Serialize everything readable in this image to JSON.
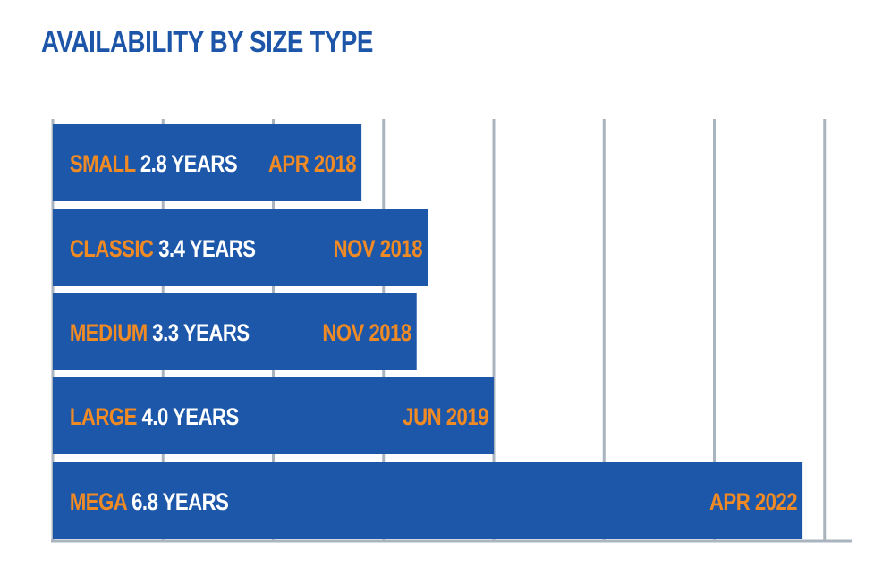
{
  "title": "AVAILABILITY BY SIZE TYPE",
  "colors": {
    "title": "#1d55a8",
    "bar": "#1d57aa",
    "accent": "#f08a24",
    "text_on_bar": "#ffffff",
    "grid": "#a9b4bf"
  },
  "chart_data": {
    "type": "bar",
    "orientation": "horizontal",
    "title": "AVAILABILITY BY SIZE TYPE",
    "xlabel": "",
    "ylabel": "",
    "xlim": [
      0,
      7
    ],
    "grid": true,
    "categories": [
      "SMALL",
      "CLASSIC",
      "MEDIUM",
      "LARGE",
      "MEGA"
    ],
    "values": [
      2.8,
      3.4,
      3.3,
      4.0,
      6.8
    ],
    "value_labels": [
      "2.8 YEARS",
      "3.4 YEARS",
      "3.3 YEARS",
      "4.0 YEARS",
      "6.8 YEARS"
    ],
    "date_labels": [
      "APR 2018",
      "NOV 2018",
      "NOV 2018",
      "JUN 2019",
      "APR 2022"
    ]
  }
}
